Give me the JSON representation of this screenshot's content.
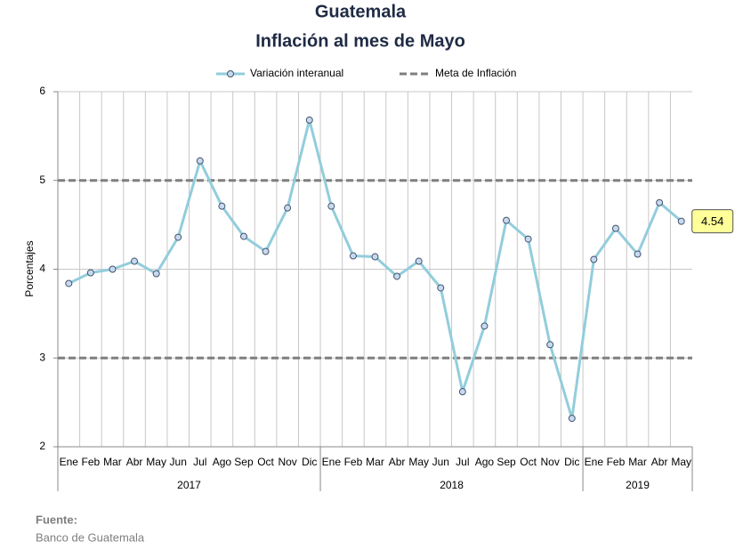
{
  "chart_data": {
    "type": "line",
    "title": "Guatemala",
    "subtitle": "Inflación al mes de Mayo",
    "y_label": "Porcentajes",
    "groups": [
      {
        "label": "2017",
        "categories": [
          "Ene",
          "Feb",
          "Mar",
          "Abr",
          "May",
          "Jun",
          "Jul",
          "Ago",
          "Sep",
          "Oct",
          "Nov",
          "Dic"
        ]
      },
      {
        "label": "2018",
        "categories": [
          "Ene",
          "Feb",
          "Mar",
          "Abr",
          "May",
          "Jun",
          "Jul",
          "Ago",
          "Sep",
          "Oct",
          "Nov",
          "Dic"
        ]
      },
      {
        "label": "2019",
        "categories": [
          "Ene",
          "Feb",
          "Mar",
          "Abr",
          "May"
        ]
      }
    ],
    "series": [
      {
        "name": "Variación interanual",
        "color": "#92cddc",
        "values": [
          3.84,
          3.96,
          4.0,
          4.09,
          3.95,
          4.36,
          5.22,
          4.71,
          4.37,
          4.2,
          4.69,
          5.68,
          4.71,
          4.15,
          4.14,
          3.92,
          4.09,
          3.79,
          2.62,
          3.36,
          4.55,
          4.34,
          3.15,
          2.32,
          4.11,
          4.46,
          4.17,
          4.75,
          4.54
        ]
      }
    ],
    "target": {
      "name": "Meta de Inflación",
      "color": "#7f7f7f",
      "values": [
        3,
        5
      ]
    },
    "ylim": [
      2,
      6
    ],
    "yticks": [
      2,
      3,
      4,
      5,
      6
    ],
    "grid": true,
    "legend": "top",
    "source": {
      "label": "Fuente:",
      "text": "Banco de Guatemala"
    }
  }
}
